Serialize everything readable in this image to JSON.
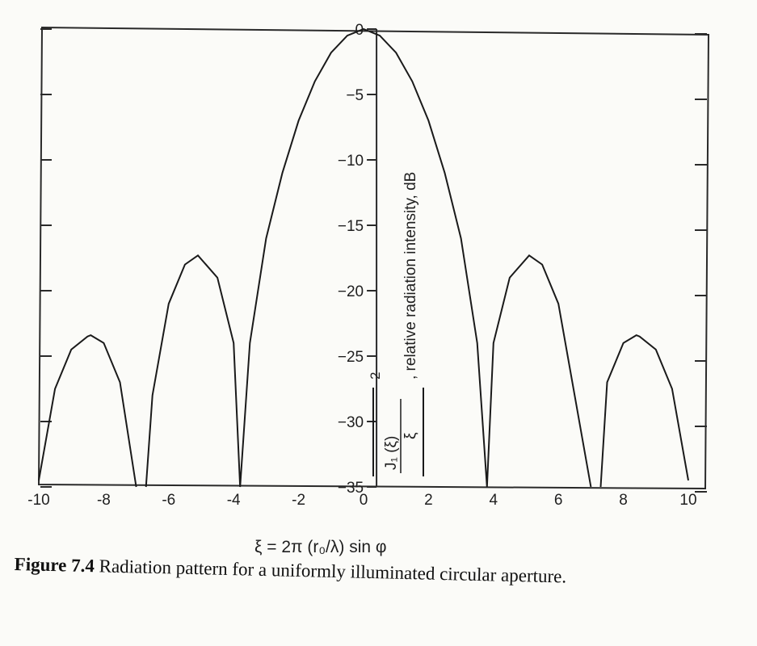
{
  "chart_data": {
    "type": "line",
    "title": "",
    "xlabel": "ξ = 2π (r₀/λ) sin φ",
    "ylabel": "|J₁(ξ)/ξ|², relative radiation intensity, dB",
    "xlim": [
      -10,
      10
    ],
    "ylim": [
      -35,
      0
    ],
    "x_ticks": [
      -10,
      -8,
      -6,
      -4,
      -2,
      0,
      2,
      4,
      6,
      8,
      10
    ],
    "y_ticks": [
      0,
      -5,
      -10,
      -15,
      -20,
      -25,
      -30,
      -35
    ],
    "grid": false,
    "series": [
      {
        "values_note": "",
        "x": [
          -10,
          -9.5,
          -9,
          -8.5,
          -8.4,
          -8,
          -7.5,
          -7,
          -6.7,
          -6.5,
          -6,
          -5.5,
          -5.1,
          -4.5,
          -4,
          -3.8,
          -3.5,
          -3,
          -2.5,
          -2,
          -1.5,
          -1,
          -0.5,
          0,
          0.5,
          1,
          1.5,
          2,
          2.5,
          3,
          3.5,
          3.8,
          4,
          4.5,
          5.1,
          5.5,
          6,
          6.5,
          7,
          7.3,
          7.5,
          8,
          8.4,
          8.5,
          9,
          9.5,
          10
        ],
        "y": [
          -34.5,
          -27.5,
          -24.5,
          -23.5,
          -23.4,
          -24,
          -27,
          -35,
          -35,
          -28,
          -21,
          -18,
          -17.3,
          -19,
          -24,
          -35,
          -24,
          -16,
          -11,
          -7,
          -4,
          -1.8,
          -0.5,
          0,
          -0.5,
          -1.8,
          -4,
          -7,
          -11,
          -16,
          -24,
          -35,
          -24,
          -19,
          -17.3,
          -18,
          -21,
          -28,
          -35,
          -35,
          -27,
          -24,
          -23.4,
          -23.5,
          -24.5,
          -27.5,
          -34.5
        ]
      }
    ]
  },
  "axis_labels": {
    "x_label_text": "ξ = 2π (r₀/λ) sin φ",
    "y_label_text": ", relative radiation intensity, dB",
    "y_fraction_num": "J₁ (ξ)",
    "y_fraction_den": "ξ",
    "y_power": "2"
  },
  "caption": {
    "label": "Figure 7.4",
    "text": "Radiation pattern for a uniformly illuminated circular aperture."
  }
}
